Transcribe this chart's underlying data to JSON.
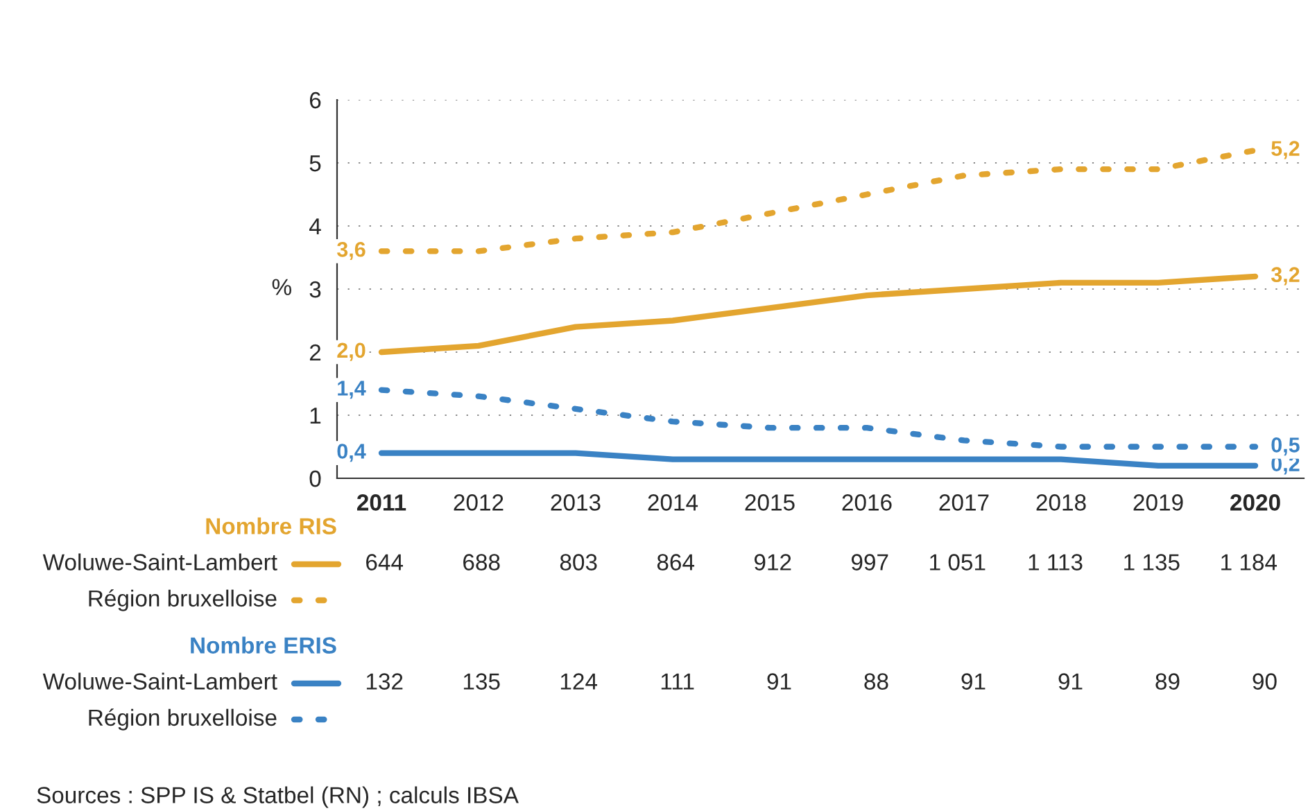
{
  "chart_data": {
    "type": "line",
    "ylabel": "%",
    "categories": [
      "2011",
      "2012",
      "2013",
      "2014",
      "2015",
      "2016",
      "2017",
      "2018",
      "2019",
      "2020"
    ],
    "ylim": [
      0,
      6
    ],
    "yticks": [
      0,
      1,
      2,
      3,
      4,
      5,
      6
    ],
    "grid": "y",
    "legend": "bottom",
    "series": [
      {
        "name": "Woluwe-Saint-Lambert",
        "color": "#e3a52f",
        "line_style": "solid",
        "values": [
          2.0,
          2.1,
          2.4,
          2.5,
          2.7,
          2.9,
          3.0,
          3.1,
          3.1,
          3.2
        ],
        "value_labels": [
          "2,0",
          null,
          null,
          null,
          null,
          null,
          null,
          null,
          null,
          "3,2"
        ]
      },
      {
        "name": "Région bruxelloise",
        "color": "#e3a52f",
        "line_style": "dotted",
        "values": [
          3.6,
          3.6,
          3.8,
          3.9,
          4.2,
          4.5,
          4.8,
          4.9,
          4.9,
          5.2
        ],
        "value_labels": [
          "3,6",
          null,
          null,
          null,
          null,
          null,
          null,
          null,
          null,
          "5,2"
        ]
      },
      {
        "name": "Woluwe-Saint-Lambert",
        "color": "#3a82c4",
        "line_style": "solid",
        "values": [
          0.4,
          0.4,
          0.4,
          0.3,
          0.3,
          0.3,
          0.3,
          0.3,
          0.2,
          0.2
        ],
        "value_labels": [
          "0,4",
          null,
          null,
          null,
          null,
          null,
          null,
          null,
          null,
          "0,2"
        ]
      },
      {
        "name": "Région bruxelloise",
        "color": "#3a82c4",
        "line_style": "dotted",
        "values": [
          1.4,
          1.3,
          1.1,
          0.9,
          0.8,
          0.8,
          0.6,
          0.5,
          0.5,
          0.5
        ],
        "value_labels": [
          "1,4",
          null,
          null,
          null,
          null,
          null,
          null,
          null,
          null,
          "0,5"
        ]
      }
    ],
    "annotations": [
      "Nombre RIS",
      "644",
      "688",
      "803",
      "864",
      "912",
      "997",
      "1 051",
      "1 113",
      "1 135",
      "1 184",
      "Nombre ERIS",
      "132",
      "135",
      "124",
      "111",
      "91",
      "88",
      "91",
      "91",
      "89",
      "90",
      "Sources : SPP IS & Statbel (RN) ; calculs IBSA"
    ]
  }
}
